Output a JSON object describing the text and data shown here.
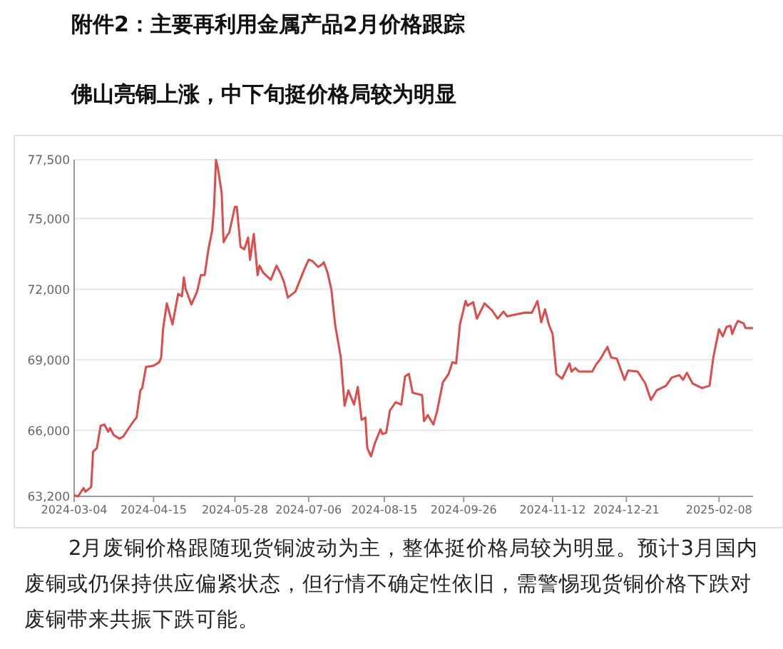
{
  "chart_data": {
    "type": "line",
    "title": "附件2：主要再利用金属产品2月价格跟踪",
    "subtitle": "佛山亮铜上涨，中下旬挺价格局较为明显",
    "annotations": [
      "2月废铜价格跟随现货铜波动为主，整体挺价格局较为明显。预计3月国内废铜或仍保持供应偏紧状态，但行情不确定性依旧，需警惕现货铜价格下跌对废铜带来共振下跌可能。"
    ],
    "x": [
      "2024-03-04",
      "2024-03-06",
      "2024-03-09",
      "2024-03-10",
      "2024-03-13",
      "2024-03-14",
      "2024-03-16",
      "2024-03-18",
      "2024-03-20",
      "2024-03-22",
      "2024-03-23",
      "2024-03-25",
      "2024-03-28",
      "2024-03-30",
      "2024-04-04",
      "2024-04-06",
      "2024-04-08",
      "2024-04-09",
      "2024-04-11",
      "2024-04-15",
      "2024-04-18",
      "2024-04-19",
      "2024-04-20",
      "2024-04-22",
      "2024-04-25",
      "2024-04-28",
      "2024-04-30",
      "2024-05-01",
      "2024-05-02",
      "2024-05-05",
      "2024-05-08",
      "2024-05-10",
      "2024-05-12",
      "2024-05-14",
      "2024-05-16",
      "2024-05-17",
      "2024-05-18",
      "2024-05-19",
      "2024-05-21",
      "2024-05-22",
      "2024-05-24",
      "2024-05-25",
      "2024-05-28",
      "2024-05-29",
      "2024-05-31",
      "2024-06-02",
      "2024-06-04",
      "2024-06-05",
      "2024-06-07",
      "2024-06-09",
      "2024-06-10",
      "2024-06-12",
      "2024-06-16",
      "2024-06-19",
      "2024-06-21",
      "2024-06-23",
      "2024-06-25",
      "2024-06-29",
      "2024-07-01",
      "2024-07-04",
      "2024-07-06",
      "2024-07-08",
      "2024-07-11",
      "2024-07-13",
      "2024-07-14",
      "2024-07-16",
      "2024-07-18",
      "2024-07-20",
      "2024-07-23",
      "2024-07-25",
      "2024-07-27",
      "2024-07-30",
      "2024-08-01",
      "2024-08-03",
      "2024-08-05",
      "2024-08-06",
      "2024-08-08",
      "2024-08-10",
      "2024-08-13",
      "2024-08-14",
      "2024-08-16",
      "2024-08-18",
      "2024-08-21",
      "2024-08-24",
      "2024-08-26",
      "2024-08-28",
      "2024-08-30",
      "2024-09-04",
      "2024-09-05",
      "2024-09-07",
      "2024-09-10",
      "2024-09-12",
      "2024-09-15",
      "2024-09-18",
      "2024-09-20",
      "2024-09-22",
      "2024-09-24",
      "2024-09-27",
      "2024-09-28",
      "2024-10-01",
      "2024-10-03",
      "2024-10-07",
      "2024-10-11",
      "2024-10-14",
      "2024-10-17",
      "2024-10-19",
      "2024-10-28",
      "2024-11-01",
      "2024-11-04",
      "2024-11-06",
      "2024-11-08",
      "2024-11-10",
      "2024-11-12",
      "2024-11-14",
      "2024-11-17",
      "2024-11-21",
      "2024-11-22",
      "2024-11-24",
      "2024-11-26",
      "2024-12-03",
      "2024-12-05",
      "2024-12-07",
      "2024-12-11",
      "2024-12-13",
      "2024-12-16",
      "2024-12-20",
      "2024-12-22",
      "2024-12-27",
      "2024-12-31",
      "2025-01-03",
      "2025-01-06",
      "2025-01-11",
      "2025-01-14",
      "2025-01-18",
      "2025-01-20",
      "2025-01-22",
      "2025-01-25",
      "2025-01-30",
      "2025-02-03",
      "2025-02-05",
      "2025-02-08",
      "2025-02-10",
      "2025-02-12",
      "2025-02-14",
      "2025-02-15",
      "2025-02-17",
      "2025-02-18",
      "2025-02-21",
      "2025-02-22",
      "2025-02-26"
    ],
    "series": [
      {
        "color": "#dd4b4b",
        "values": [
          63250,
          63200,
          63550,
          63400,
          63600,
          65100,
          65250,
          66200,
          66250,
          65950,
          66100,
          65800,
          65650,
          65750,
          66350,
          66550,
          67700,
          67800,
          68700,
          68750,
          68900,
          69100,
          70300,
          71400,
          70500,
          71800,
          71700,
          72500,
          72000,
          71350,
          71900,
          72600,
          72600,
          73700,
          74500,
          75500,
          77500,
          77150,
          76100,
          74000,
          74300,
          74400,
          75500,
          75500,
          73800,
          73700,
          74200,
          73250,
          74350,
          72600,
          73000,
          72700,
          72400,
          73000,
          72700,
          72300,
          71650,
          71900,
          72300,
          72900,
          73250,
          73200,
          72950,
          73050,
          73150,
          72700,
          72000,
          70500,
          69100,
          67050,
          67700,
          67100,
          67850,
          66450,
          66550,
          65250,
          64900,
          65450,
          66050,
          65850,
          65900,
          66850,
          67200,
          67100,
          68300,
          68400,
          67600,
          67500,
          66400,
          66650,
          66250,
          66850,
          68050,
          68400,
          68900,
          68850,
          70500,
          71500,
          71300,
          71450,
          70750,
          71400,
          71100,
          70750,
          71050,
          70850,
          71000,
          71000,
          71500,
          70600,
          71150,
          70500,
          70100,
          68400,
          68200,
          68850,
          68500,
          68650,
          68500,
          68500,
          68800,
          69000,
          69550,
          69100,
          69050,
          68150,
          68550,
          68500,
          68000,
          67300,
          67700,
          67900,
          68250,
          68350,
          68150,
          68450,
          68000,
          67800,
          67900,
          69100,
          70300,
          70000,
          70400,
          70450,
          70100,
          70500,
          70650,
          70550,
          70350,
          70350
        ]
      }
    ],
    "xlim": [
      "2024-03-04",
      "2025-02-26"
    ],
    "xticks": [
      "2024-03-04",
      "2024-04-15",
      "2024-05-28",
      "2024-07-06",
      "2024-08-15",
      "2024-09-26",
      "2024-11-12",
      "2024-12-21",
      "2025-02-08"
    ],
    "ylim": [
      63200,
      77500
    ],
    "yticks": [
      {
        "value": 63200,
        "label": "63,200"
      },
      {
        "value": 66000,
        "label": "66,000"
      },
      {
        "value": 69000,
        "label": "69,000"
      },
      {
        "value": 72000,
        "label": "72,000"
      },
      {
        "value": 75000,
        "label": "75,000"
      },
      {
        "value": 77500,
        "label": "77,500"
      }
    ],
    "grid": "y"
  }
}
